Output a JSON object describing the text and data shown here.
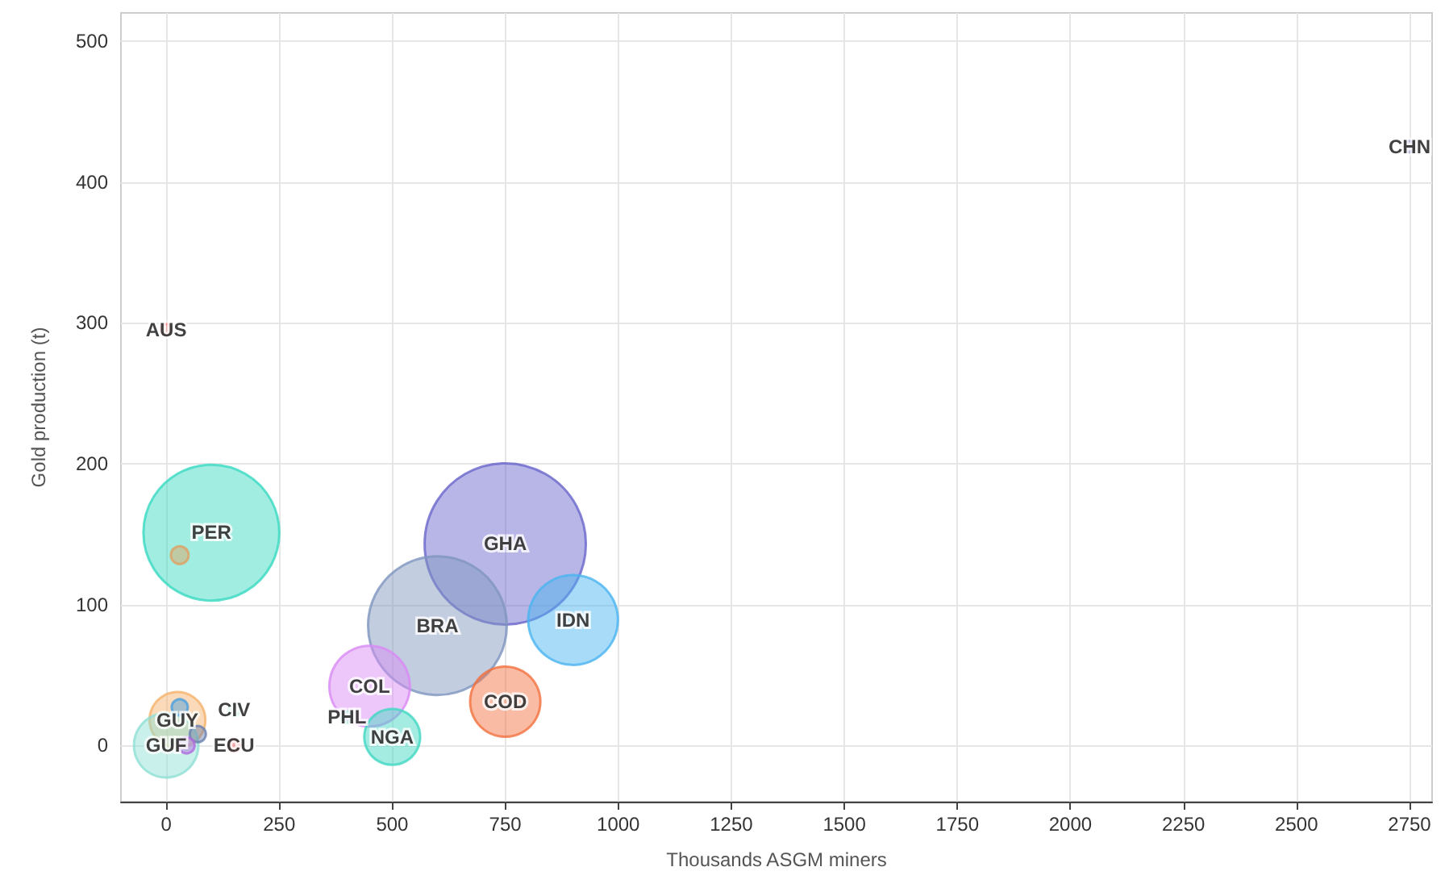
{
  "chart_data": {
    "type": "bubble",
    "xlabel": "Thousands ASGM miners",
    "ylabel": "Gold production (t)",
    "xlim": [
      -100,
      2800
    ],
    "xticks": [
      0,
      250,
      500,
      750,
      1000,
      1250,
      1500,
      1750,
      2000,
      2250,
      2500,
      2750
    ],
    "ylim": [
      -40,
      520
    ],
    "yticks": [
      0,
      100,
      200,
      300,
      400,
      500
    ],
    "grid": true,
    "series": [
      {
        "x": [
          750,
          600,
          100,
          900,
          450,
          750,
          500,
          25,
          0,
          400,
          150,
          150,
          0,
          2750,
          30,
          70,
          45,
          30
        ],
        "values": [
          143,
          85,
          151,
          89,
          42,
          31,
          6,
          18,
          0,
          20,
          25,
          0,
          295,
          425,
          27,
          8,
          0,
          135
        ],
        "sizes": [
          1,
          0.74,
          0.71,
          0.31,
          0.25,
          0.19,
          0.12,
          0.12,
          0.16,
          0.005,
          0.005,
          0.006,
          0.005,
          0.005,
          0.01,
          0.01,
          0.01,
          0.012
        ],
        "colors": [
          "#6a67cc",
          "#7f96bf",
          "#3ad9c2",
          "#4ab4f0",
          "#d98af5",
          "#f2703f",
          "#40d8c2",
          "#f5b26b",
          "#8fe0d4",
          "#8ee0cc",
          "#8ee0cc",
          "#f04f4f",
          "#f07070",
          "#8080c0",
          "#4a9fe0",
          "#6a7fb0",
          "#b06ae0",
          "#e0a060"
        ],
        "value_labels": [
          "GHA",
          "BRA",
          "PER",
          "IDN",
          "COL",
          "COD",
          "NGA",
          "GUY",
          "GUF",
          "PHL",
          "CIV",
          "ECU",
          "AUS",
          "CHN",
          null,
          null,
          null,
          null
        ]
      }
    ]
  }
}
